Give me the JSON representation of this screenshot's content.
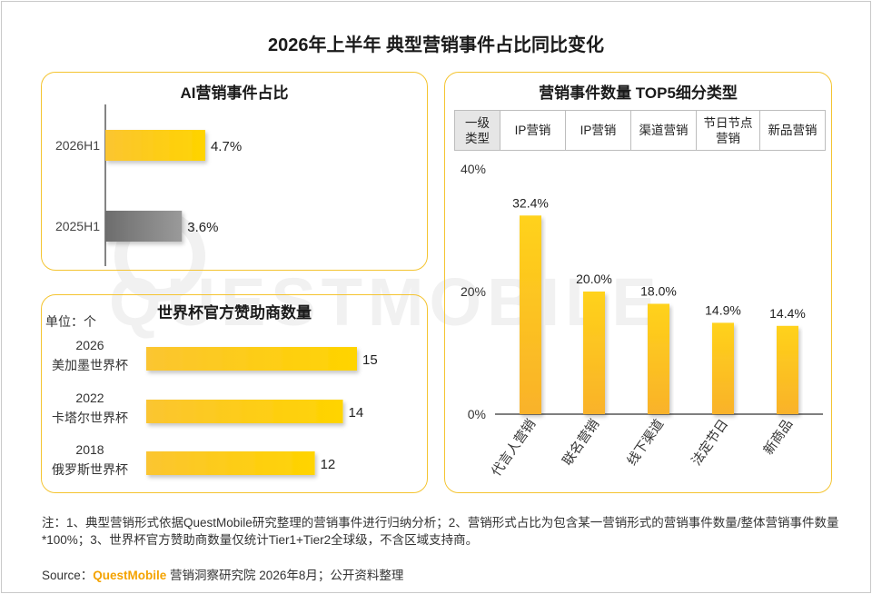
{
  "title": "2026年上半年 典型营销事件占比同比变化",
  "panels": {
    "ai_share": {
      "title": "AI营销事件占比"
    },
    "sponsors": {
      "title": "世界杯官方赞助商数量",
      "unit": "单位：个"
    },
    "top5": {
      "title": "营销事件数量 TOP5细分类型"
    }
  },
  "table": {
    "header": "一级类型",
    "header_lines": [
      "一级",
      "类型"
    ],
    "cells": [
      {
        "lines": [
          "IP营销"
        ]
      },
      {
        "lines": [
          "IP营销"
        ]
      },
      {
        "lines": [
          "渠道营销"
        ]
      },
      {
        "lines": [
          "节日节点",
          "营销"
        ]
      },
      {
        "lines": [
          "新品营销"
        ]
      }
    ]
  },
  "chart_data": [
    {
      "type": "bar",
      "orientation": "horizontal",
      "title": "AI营销事件占比",
      "categories": [
        "2026H1",
        "2025H1"
      ],
      "values": [
        4.7,
        3.6
      ],
      "value_labels": [
        "4.7%",
        "3.6%"
      ],
      "colors": [
        "#fcc419",
        "#8a8a8a"
      ]
    },
    {
      "type": "bar",
      "orientation": "horizontal",
      "title": "世界杯官方赞助商数量",
      "categories": [
        {
          "lines": [
            "2026",
            "美加墨世界杯"
          ]
        },
        {
          "lines": [
            "2022",
            "卡塔尔世界杯"
          ]
        },
        {
          "lines": [
            "2018",
            "俄罗斯世界杯"
          ]
        }
      ],
      "values": [
        15,
        14,
        12
      ],
      "value_labels": [
        "15",
        "14",
        "12"
      ],
      "color": "#fcc419"
    },
    {
      "type": "bar",
      "orientation": "vertical",
      "title": "营销事件数量 TOP5细分类型",
      "categories": [
        "代言人营销",
        "联名营销",
        "线下渠道",
        "法定节日",
        "新商品"
      ],
      "values": [
        32.4,
        20.0,
        18.0,
        14.9,
        14.4
      ],
      "value_labels": [
        "32.4%",
        "20.0%",
        "18.0%",
        "14.9%",
        "14.4%"
      ],
      "ylim": [
        0,
        40
      ],
      "yticks": [
        "0%",
        "20%",
        "40%"
      ],
      "color": "#fcc419"
    }
  ],
  "note": "注：1、典型营销形式依据QuestMobile研究整理的营销事件进行归纳分析；2、营销形式占比为包含某一营销形式的营销事件数量/整体营销事件数量*100%；3、世界杯官方赞助商数量仅统计Tier1+Tier2全球级，不含区域支持商。",
  "source": {
    "label": "Source：",
    "brand": "QuestMobile",
    "text": " 营销洞察研究院 2026年8月；公开资料整理"
  },
  "watermark": "QUESTMOBILE"
}
